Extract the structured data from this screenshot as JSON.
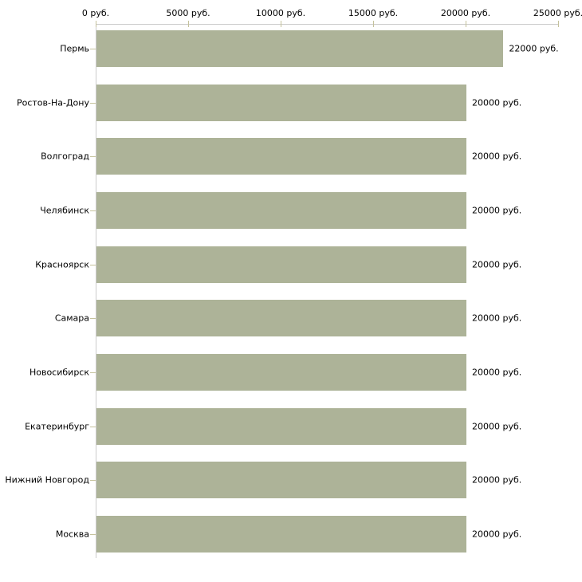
{
  "chart_data": {
    "type": "bar",
    "orientation": "horizontal",
    "title": "",
    "xlabel": "",
    "ylabel": "",
    "unit": "руб.",
    "categories": [
      "Пермь",
      "Ростов-На-Дону",
      "Волгоград",
      "Челябинск",
      "Красноярск",
      "Самара",
      "Новосибирск",
      "Екатеринбург",
      "Нижний Новгород",
      "Москва"
    ],
    "values": [
      22000,
      20000,
      20000,
      20000,
      20000,
      20000,
      20000,
      20000,
      20000,
      20000
    ],
    "value_labels": [
      "22000 руб.",
      "20000 руб.",
      "20000 руб.",
      "20000 руб.",
      "20000 руб.",
      "20000 руб.",
      "20000 руб.",
      "20000 руб.",
      "20000 руб.",
      "20000 руб."
    ],
    "x_axis": {
      "position": "top",
      "range": [
        0,
        25000
      ],
      "ticks": [
        0,
        5000,
        10000,
        15000,
        20000,
        25000
      ],
      "tick_labels": [
        "0 руб.",
        "5000 руб.",
        "10000 руб.",
        "15000 руб.",
        "20000 руб.",
        "25000 руб."
      ]
    },
    "grid": false,
    "legend": false,
    "colors": {
      "bar": "#adb398",
      "axis_line": "#cccccc",
      "tick_mark": "#c5c29c",
      "text": "#000000",
      "background": "#ffffff"
    }
  }
}
